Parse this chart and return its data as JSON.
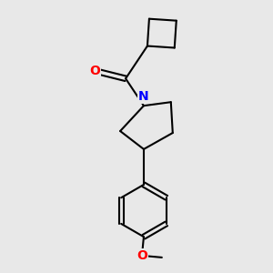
{
  "background_color": "#e8e8e8",
  "line_color": "#000000",
  "bond_width": 1.5,
  "atom_colors": {
    "O": "#ff0000",
    "N": "#0000ff",
    "C": "#000000"
  },
  "font_size_atom": 10
}
